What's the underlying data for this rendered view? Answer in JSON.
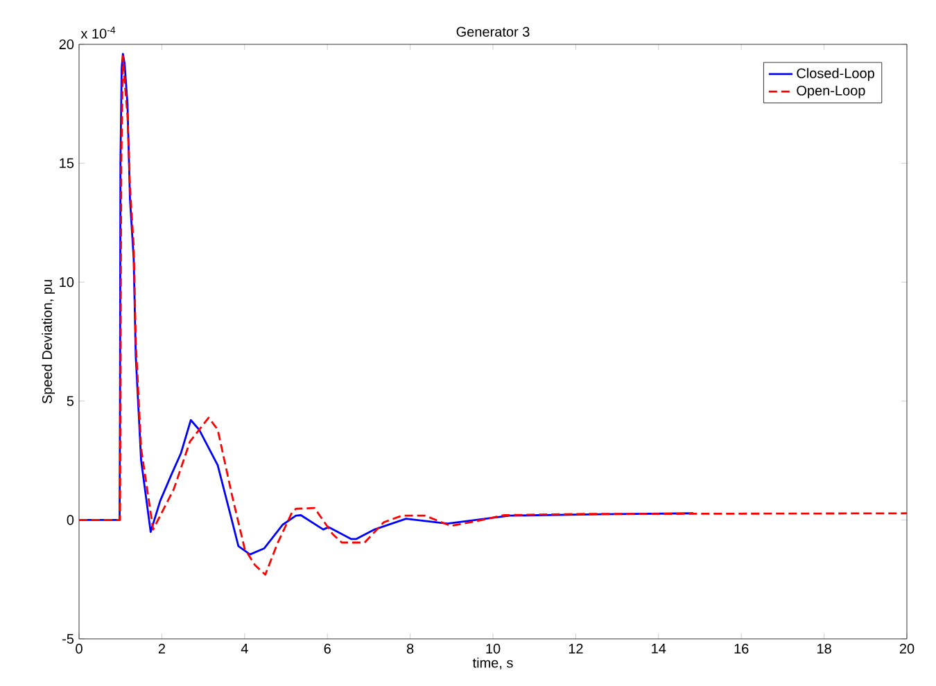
{
  "chart_data": {
    "type": "line",
    "title": "Generator 3",
    "xlabel": "time, s",
    "ylabel": "Speed Deviation, pu",
    "annotations": [
      "x 10$^{-4}$"
    ],
    "xlim": [
      0,
      20
    ],
    "ylim": [
      -5,
      20
    ],
    "xticks": [
      0,
      2,
      4,
      6,
      8,
      10,
      12,
      14,
      16,
      18,
      20
    ],
    "yticks": [
      -5,
      0,
      5,
      10,
      15,
      20
    ],
    "legend": "top right",
    "grid": false,
    "marker": "none",
    "series": [
      {
        "name": "Closed-Loop",
        "color": "#0000ff",
        "line_style": "solid",
        "x": [
          0,
          0.98,
          0.99,
          1.0,
          1.03,
          1.06,
          1.1,
          1.17,
          1.23,
          1.32,
          1.37,
          1.5,
          1.73,
          1.96,
          2.23,
          2.46,
          2.7,
          2.9,
          3.35,
          3.69,
          3.85,
          4.13,
          4.47,
          4.92,
          5.24,
          5.36,
          5.9,
          6.03,
          6.57,
          6.7,
          7.14,
          7.9,
          8.9,
          10.4,
          12.6,
          14.84
        ],
        "values": [
          0,
          0,
          5.1,
          15,
          19,
          19.6,
          19.2,
          17.5,
          13.5,
          11,
          6.9,
          2.5,
          -0.5,
          0.8,
          1.9,
          2.8,
          4.2,
          3.8,
          2.3,
          0,
          -1.1,
          -1.45,
          -1.2,
          -0.2,
          0.18,
          0.2,
          -0.4,
          -0.3,
          -0.8,
          -0.8,
          -0.4,
          0.05,
          -0.15,
          0.18,
          0.24,
          0.28
        ]
      },
      {
        "name": "Open-Loop",
        "color": "#ff0000",
        "line_style": "dashed",
        "x": [
          0,
          0.99,
          1.0,
          1.02,
          1.06,
          1.1,
          1.17,
          1.23,
          1.32,
          1.37,
          1.5,
          1.79,
          2.29,
          2.68,
          3.13,
          3.35,
          3.7,
          4.0,
          4.25,
          4.5,
          4.79,
          5.14,
          5.24,
          5.69,
          6.13,
          6.35,
          6.9,
          7.36,
          7.8,
          8.36,
          8.98,
          9.6,
          10.26,
          12,
          20
        ],
        "values": [
          0,
          0,
          5,
          15,
          19.5,
          18.5,
          17,
          14,
          11.5,
          7.5,
          3,
          -0.4,
          1.3,
          3.3,
          4.3,
          3.8,
          1.0,
          -1.2,
          -1.9,
          -2.3,
          -1.0,
          0.3,
          0.47,
          0.5,
          -0.6,
          -0.95,
          -0.95,
          -0.1,
          0.18,
          0.18,
          -0.25,
          -0.05,
          0.2,
          0.25,
          0.28
        ]
      }
    ]
  }
}
